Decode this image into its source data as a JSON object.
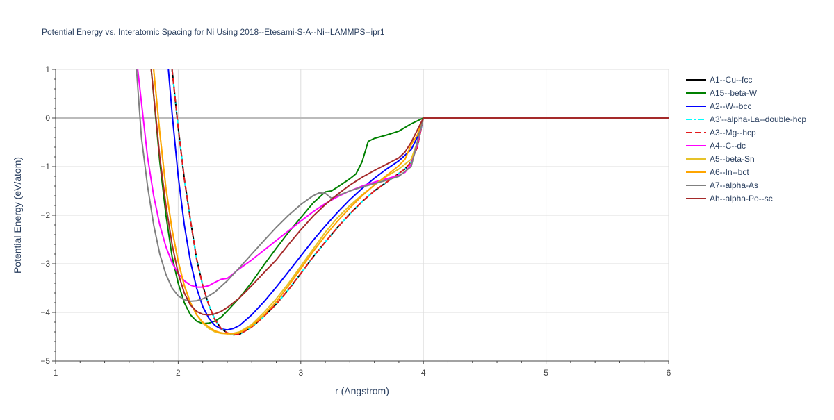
{
  "chart_data": {
    "type": "line",
    "title": "Potential Energy vs. Interatomic Spacing for Ni Using 2018--Etesami-S-A--Ni--LAMMPS--ipr1",
    "xlabel": "r (Angstrom)",
    "ylabel": "Potential Energy (eV/atom)",
    "xlim": [
      1,
      6
    ],
    "ylim": [
      -5,
      1
    ],
    "xticks": [
      1,
      2,
      3,
      4,
      5,
      6
    ],
    "yticks": [
      -5,
      -4,
      -3,
      -2,
      -1,
      0,
      1
    ],
    "xtick_labels": [
      "1",
      "2",
      "3",
      "4",
      "5",
      "6"
    ],
    "ytick_labels": [
      "−5",
      "−4",
      "−3",
      "−2",
      "−1",
      "0",
      "1"
    ],
    "grid": true,
    "legend_position": "top-right, outside plot",
    "series": [
      {
        "name": "A1--Cu--fcc",
        "color": "#000000",
        "dash": "solid",
        "x": [
          1.95,
          2.0,
          2.05,
          2.1,
          2.15,
          2.2,
          2.25,
          2.3,
          2.35,
          2.4,
          2.45,
          2.5,
          2.6,
          2.7,
          2.8,
          2.9,
          3.0,
          3.1,
          3.2,
          3.3,
          3.4,
          3.5,
          3.6,
          3.7,
          3.8,
          3.85,
          3.9,
          3.95,
          4.0,
          6.0
        ],
        "y": [
          1.0,
          -0.2,
          -1.25,
          -2.1,
          -2.9,
          -3.45,
          -3.85,
          -4.15,
          -4.33,
          -4.42,
          -4.46,
          -4.45,
          -4.3,
          -4.08,
          -3.83,
          -3.53,
          -3.2,
          -2.86,
          -2.55,
          -2.25,
          -1.97,
          -1.72,
          -1.5,
          -1.32,
          -1.14,
          -1.05,
          -0.9,
          -0.6,
          0.0,
          0.0
        ]
      },
      {
        "name": "A15--beta-W",
        "color": "#008000",
        "dash": "solid",
        "x": [
          1.78,
          1.85,
          1.9,
          1.95,
          2.0,
          2.05,
          2.1,
          2.15,
          2.2,
          2.25,
          2.3,
          2.35,
          2.4,
          2.5,
          2.6,
          2.7,
          2.8,
          2.9,
          3.0,
          3.1,
          3.2,
          3.25,
          3.3,
          3.4,
          3.45,
          3.5,
          3.55,
          3.6,
          3.7,
          3.8,
          3.9,
          4.0,
          6.0
        ],
        "y": [
          1.0,
          -0.9,
          -2.0,
          -2.85,
          -3.4,
          -3.8,
          -4.05,
          -4.18,
          -4.23,
          -4.22,
          -4.18,
          -4.1,
          -3.97,
          -3.7,
          -3.38,
          -3.02,
          -2.68,
          -2.35,
          -2.05,
          -1.75,
          -1.52,
          -1.5,
          -1.42,
          -1.25,
          -1.15,
          -0.9,
          -0.48,
          -0.42,
          -0.35,
          -0.27,
          -0.12,
          0.0,
          0.0
        ]
      },
      {
        "name": "A2--W--bcc",
        "color": "#0000ff",
        "dash": "solid",
        "x": [
          1.92,
          1.95,
          2.0,
          2.05,
          2.1,
          2.15,
          2.2,
          2.25,
          2.3,
          2.35,
          2.4,
          2.45,
          2.5,
          2.6,
          2.7,
          2.8,
          2.9,
          3.0,
          3.1,
          3.2,
          3.3,
          3.4,
          3.5,
          3.6,
          3.7,
          3.8,
          3.9,
          3.95,
          4.0,
          6.0
        ],
        "y": [
          1.0,
          0.1,
          -1.2,
          -2.2,
          -2.95,
          -3.5,
          -3.88,
          -4.12,
          -4.27,
          -4.34,
          -4.36,
          -4.33,
          -4.27,
          -4.05,
          -3.78,
          -3.48,
          -3.16,
          -2.84,
          -2.52,
          -2.22,
          -1.94,
          -1.68,
          -1.45,
          -1.24,
          -1.05,
          -0.88,
          -0.65,
          -0.4,
          0.0,
          0.0
        ]
      },
      {
        "name": "A3'--alpha-La--double-hcp",
        "color": "#00ffff",
        "dash": "dashdot",
        "x": [
          1.95,
          2.0,
          2.05,
          2.1,
          2.15,
          2.2,
          2.25,
          2.3,
          2.35,
          2.4,
          2.45,
          2.5,
          2.6,
          2.7,
          2.8,
          2.9,
          3.0,
          3.1,
          3.2,
          3.3,
          3.4,
          3.5,
          3.6,
          3.7,
          3.8,
          3.85,
          3.9,
          3.95,
          4.0,
          6.0
        ],
        "y": [
          1.0,
          -0.2,
          -1.25,
          -2.1,
          -2.9,
          -3.45,
          -3.85,
          -4.15,
          -4.33,
          -4.42,
          -4.46,
          -4.45,
          -4.3,
          -4.08,
          -3.83,
          -3.53,
          -3.2,
          -2.86,
          -2.55,
          -2.25,
          -1.97,
          -1.72,
          -1.5,
          -1.32,
          -1.14,
          -1.05,
          -0.9,
          -0.6,
          0.0,
          0.0
        ]
      },
      {
        "name": "A3--Mg--hcp",
        "color": "#e41a1c",
        "dash": "dash",
        "x": [
          1.95,
          2.0,
          2.05,
          2.1,
          2.15,
          2.2,
          2.25,
          2.3,
          2.35,
          2.4,
          2.45,
          2.5,
          2.6,
          2.7,
          2.8,
          2.9,
          3.0,
          3.1,
          3.2,
          3.3,
          3.4,
          3.5,
          3.6,
          3.7,
          3.8,
          3.85,
          3.9,
          3.95,
          4.0,
          6.0
        ],
        "y": [
          1.0,
          -0.2,
          -1.25,
          -2.1,
          -2.9,
          -3.45,
          -3.85,
          -4.15,
          -4.33,
          -4.42,
          -4.46,
          -4.45,
          -4.3,
          -4.08,
          -3.83,
          -3.53,
          -3.2,
          -2.86,
          -2.55,
          -2.25,
          -1.97,
          -1.72,
          -1.5,
          -1.32,
          -1.14,
          -1.05,
          -0.9,
          -0.6,
          0.0,
          0.0
        ]
      },
      {
        "name": "A4--C--dc",
        "color": "#ff00ff",
        "dash": "solid",
        "x": [
          1.67,
          1.75,
          1.8,
          1.85,
          1.9,
          1.95,
          2.0,
          2.05,
          2.1,
          2.15,
          2.2,
          2.25,
          2.3,
          2.35,
          2.4,
          2.5,
          2.6,
          2.7,
          2.8,
          2.9,
          3.0,
          3.1,
          3.2,
          3.3,
          3.4,
          3.5,
          3.6,
          3.7,
          3.8,
          3.85,
          3.9,
          3.95,
          4.0,
          6.0
        ],
        "y": [
          1.0,
          -0.8,
          -1.6,
          -2.2,
          -2.65,
          -2.98,
          -3.2,
          -3.35,
          -3.44,
          -3.48,
          -3.48,
          -3.45,
          -3.38,
          -3.32,
          -3.3,
          -3.1,
          -2.92,
          -2.72,
          -2.52,
          -2.32,
          -2.12,
          -1.93,
          -1.76,
          -1.62,
          -1.5,
          -1.4,
          -1.32,
          -1.25,
          -1.18,
          -1.12,
          -0.95,
          -0.55,
          0.0,
          0.0
        ]
      },
      {
        "name": "A5--beta-Sn",
        "color": "#e6c229",
        "dash": "solid",
        "x": [
          1.8,
          1.85,
          1.9,
          1.95,
          2.0,
          2.05,
          2.1,
          2.15,
          2.2,
          2.25,
          2.3,
          2.35,
          2.4,
          2.45,
          2.5,
          2.6,
          2.7,
          2.8,
          2.9,
          3.0,
          3.1,
          3.2,
          3.3,
          3.4,
          3.5,
          3.6,
          3.7,
          3.8,
          3.9,
          3.95,
          4.0,
          6.0
        ],
        "y": [
          1.0,
          -0.3,
          -1.45,
          -2.3,
          -2.95,
          -3.45,
          -3.8,
          -4.05,
          -4.22,
          -4.33,
          -4.4,
          -4.43,
          -4.44,
          -4.43,
          -4.4,
          -4.25,
          -4.0,
          -3.72,
          -3.4,
          -3.05,
          -2.7,
          -2.35,
          -2.05,
          -1.8,
          -1.58,
          -1.38,
          -1.2,
          -1.05,
          -0.85,
          -0.5,
          0.0,
          0.0
        ]
      },
      {
        "name": "A6--In--bct",
        "color": "#ffa500",
        "dash": "solid",
        "x": [
          1.8,
          1.85,
          1.9,
          1.95,
          2.0,
          2.05,
          2.1,
          2.15,
          2.2,
          2.25,
          2.3,
          2.35,
          2.4,
          2.45,
          2.5,
          2.6,
          2.7,
          2.8,
          2.9,
          3.0,
          3.1,
          3.2,
          3.3,
          3.4,
          3.5,
          3.6,
          3.7,
          3.8,
          3.85,
          3.9,
          3.95,
          4.0,
          6.0
        ],
        "y": [
          1.0,
          -0.3,
          -1.45,
          -2.3,
          -2.95,
          -3.45,
          -3.8,
          -4.05,
          -4.2,
          -4.3,
          -4.38,
          -4.42,
          -4.44,
          -4.44,
          -4.42,
          -4.28,
          -4.05,
          -3.78,
          -3.45,
          -3.1,
          -2.75,
          -2.42,
          -2.12,
          -1.85,
          -1.6,
          -1.38,
          -1.18,
          -0.98,
          -0.85,
          -0.55,
          -0.35,
          0.0,
          0.0
        ]
      },
      {
        "name": "A7--alpha-As",
        "color": "#808080",
        "dash": "solid",
        "x": [
          1.66,
          1.7,
          1.75,
          1.8,
          1.85,
          1.9,
          1.95,
          2.0,
          2.05,
          2.1,
          2.15,
          2.2,
          2.25,
          2.3,
          2.4,
          2.5,
          2.6,
          2.7,
          2.8,
          2.9,
          3.0,
          3.1,
          3.15,
          3.2,
          3.25,
          3.3,
          3.4,
          3.5,
          3.6,
          3.7,
          3.8,
          3.9,
          4.0,
          6.0
        ],
        "y": [
          1.0,
          -0.4,
          -1.4,
          -2.2,
          -2.8,
          -3.22,
          -3.5,
          -3.66,
          -3.74,
          -3.77,
          -3.76,
          -3.72,
          -3.66,
          -3.58,
          -3.35,
          -3.08,
          -2.8,
          -2.52,
          -2.25,
          -2.0,
          -1.78,
          -1.6,
          -1.54,
          -1.55,
          -1.65,
          -1.6,
          -1.5,
          -1.42,
          -1.35,
          -1.28,
          -1.2,
          -1.0,
          0.0,
          0.0
        ]
      },
      {
        "name": "Ah--alpha-Po--sc",
        "color": "#a52a2a",
        "dash": "solid",
        "x": [
          1.78,
          1.85,
          1.9,
          1.95,
          2.0,
          2.05,
          2.1,
          2.15,
          2.2,
          2.25,
          2.3,
          2.35,
          2.4,
          2.5,
          2.6,
          2.7,
          2.8,
          2.9,
          3.0,
          3.1,
          3.2,
          3.3,
          3.4,
          3.5,
          3.6,
          3.7,
          3.8,
          3.85,
          3.9,
          3.95,
          4.0,
          6.0
        ],
        "y": [
          1.0,
          -0.8,
          -1.8,
          -2.6,
          -3.2,
          -3.6,
          -3.85,
          -3.98,
          -4.04,
          -4.05,
          -4.03,
          -3.98,
          -3.9,
          -3.7,
          -3.45,
          -3.18,
          -2.92,
          -2.6,
          -2.3,
          -2.02,
          -1.78,
          -1.57,
          -1.38,
          -1.22,
          -1.08,
          -0.95,
          -0.82,
          -0.7,
          -0.5,
          -0.25,
          0.0,
          0.0
        ]
      }
    ]
  }
}
